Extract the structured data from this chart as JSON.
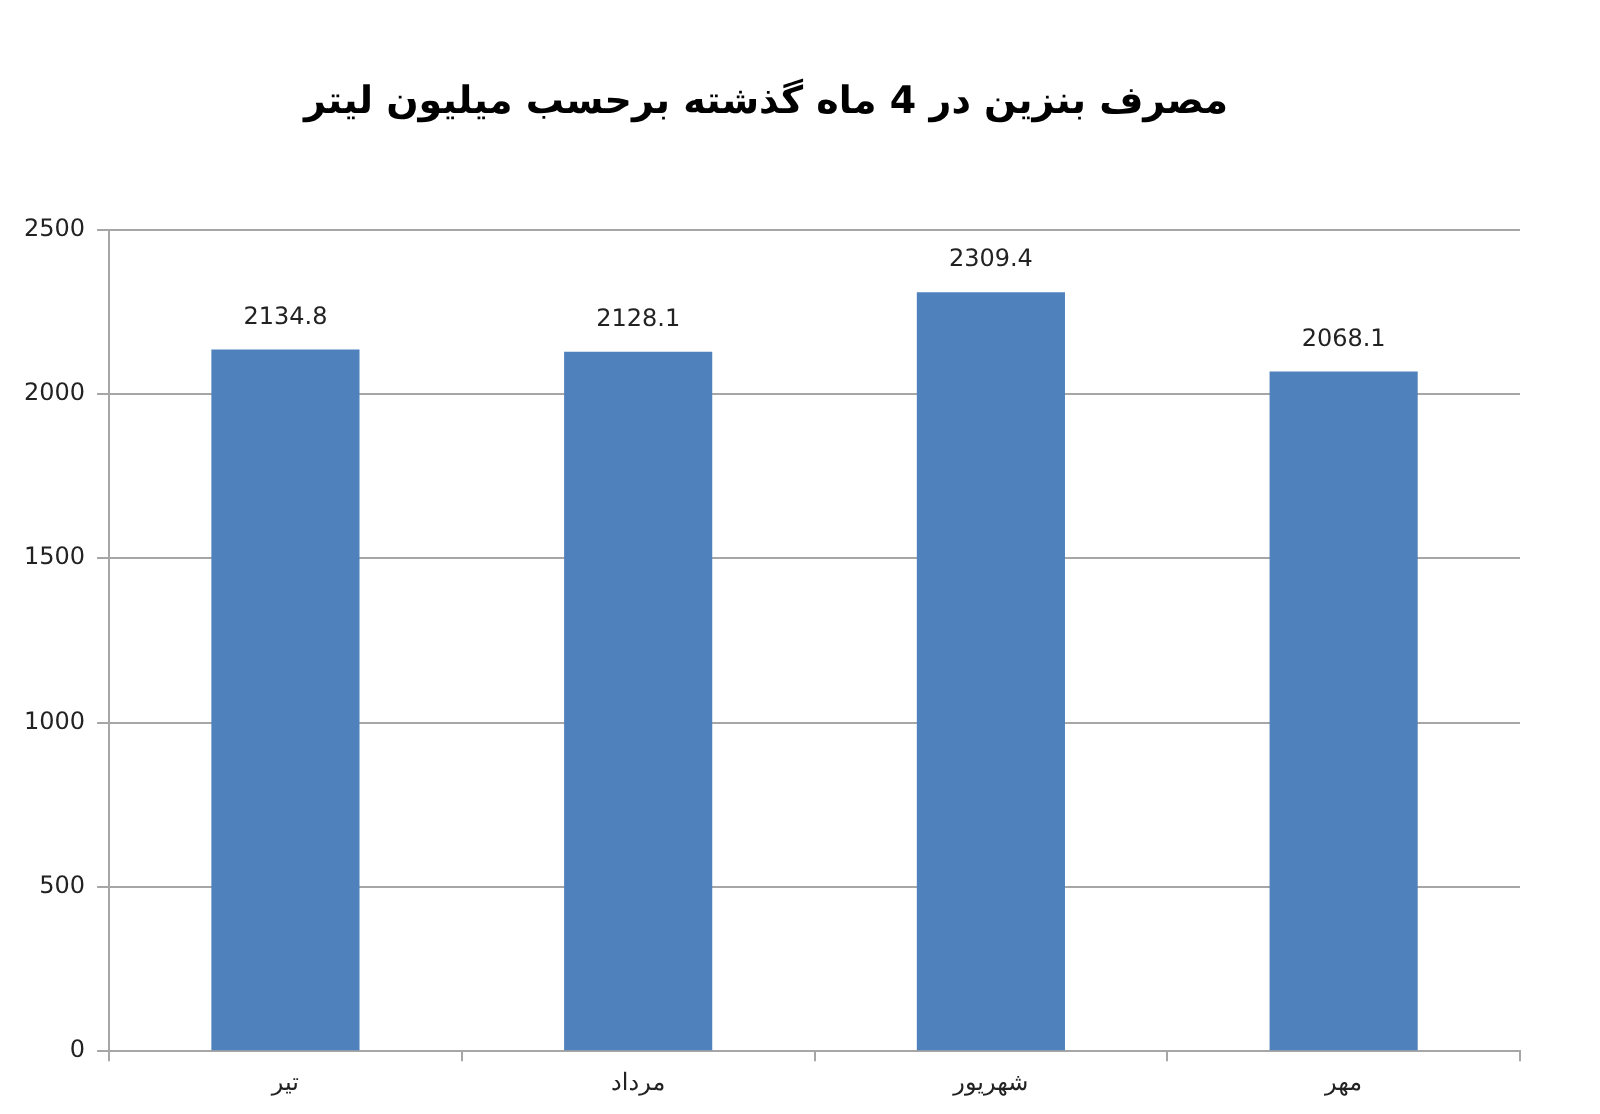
{
  "chart_data": {
    "type": "bar",
    "title": "مصرف بنزین در 4 ماه گذشته برحسب میلیون لیتر",
    "categories": [
      "تیر",
      "مرداد",
      "شهریور",
      "مهر"
    ],
    "values": [
      2134.8,
      2128.1,
      2309.4,
      2068.1
    ],
    "color": "#4f81bd",
    "ylim": [
      0,
      2500
    ],
    "yticks": [
      0,
      500,
      1000,
      1500,
      2000,
      2500
    ],
    "grid": "y",
    "data_labels": true
  }
}
